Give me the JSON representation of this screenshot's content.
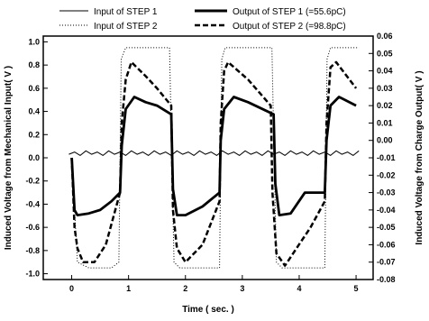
{
  "chart_data": {
    "type": "line",
    "title": "",
    "xlabel": "Time ( sec. )",
    "ylabel_left": "Induced Voltage from Mechanical Input( V )",
    "ylabel_right": "Induced Voltage from Charge Output( V )",
    "xlim": [
      -0.5,
      5.3
    ],
    "ylim_left": [
      -1.05,
      1.05
    ],
    "ylim_right": [
      -0.08,
      0.06
    ],
    "x_ticks": [
      "0",
      "1",
      "2",
      "3",
      "4",
      "5"
    ],
    "y_left_ticks": [
      "-1.0",
      "-0.8",
      "-0.6",
      "-0.4",
      "-0.2",
      "0.0",
      "0.2",
      "0.4",
      "0.6",
      "0.8",
      "1.0"
    ],
    "y_right_ticks": [
      "-0.08",
      "-0.07",
      "-0.06",
      "-0.05",
      "-0.04",
      "-0.03",
      "-0.02",
      "-0.01",
      "0.00",
      "0.01",
      "0.02",
      "0.03",
      "0.04",
      "0.05",
      "0.06"
    ],
    "legend_position": "top",
    "series": [
      {
        "name": "Input of STEP 1",
        "axis": "left",
        "style": "solid-thin",
        "x": [
          -0.05,
          0.05,
          0.15,
          0.25,
          0.35,
          0.45,
          0.55,
          0.65,
          0.75,
          0.85,
          0.95,
          1.05,
          1.15,
          1.25,
          1.35,
          1.45,
          1.55,
          1.65,
          1.75,
          1.85,
          1.95,
          2.05,
          2.15,
          2.25,
          2.35,
          2.45,
          2.55,
          2.65,
          2.75,
          2.85,
          2.95,
          3.05,
          3.15,
          3.25,
          3.35,
          3.45,
          3.55,
          3.65,
          3.75,
          3.85,
          3.95,
          4.05,
          4.15,
          4.25,
          4.35,
          4.45,
          4.55,
          4.65,
          4.75,
          4.85,
          4.95,
          5.05
        ],
        "values": [
          0.03,
          0.05,
          0.02,
          0.06,
          0.03,
          0.05,
          0.02,
          0.06,
          0.03,
          0.05,
          0.02,
          0.06,
          0.03,
          0.05,
          0.02,
          0.06,
          0.03,
          0.05,
          0.02,
          0.06,
          0.03,
          0.05,
          0.02,
          0.06,
          0.03,
          0.05,
          0.02,
          0.06,
          0.03,
          0.05,
          0.02,
          0.06,
          0.03,
          0.05,
          0.02,
          0.06,
          0.03,
          0.05,
          0.02,
          0.06,
          0.03,
          0.05,
          0.02,
          0.06,
          0.03,
          0.05,
          0.02,
          0.06,
          0.03,
          0.05,
          0.02,
          0.06
        ]
      },
      {
        "name": "Input of STEP 2",
        "axis": "left",
        "style": "dotted",
        "x": [
          0.0,
          0.1,
          0.3,
          0.5,
          0.7,
          0.83,
          0.87,
          0.95,
          1.2,
          1.5,
          1.72,
          1.76,
          1.8,
          1.9,
          2.2,
          2.5,
          2.6,
          2.64,
          2.7,
          3.0,
          3.3,
          3.52,
          3.56,
          3.6,
          3.7,
          4.0,
          4.3,
          4.45,
          4.49,
          4.55,
          4.8,
          5.05
        ],
        "values": [
          0.0,
          -0.9,
          -0.95,
          -0.95,
          -0.95,
          -0.9,
          0.85,
          0.95,
          0.95,
          0.95,
          0.95,
          0.0,
          -0.9,
          -0.95,
          -0.95,
          -0.95,
          -0.95,
          0.85,
          0.95,
          0.95,
          0.95,
          0.95,
          0.0,
          -0.9,
          -0.95,
          -0.95,
          -0.95,
          -0.95,
          0.85,
          0.95,
          0.95,
          0.95
        ]
      },
      {
        "name": "Output of STEP 1 (=55.6pC)",
        "axis": "right",
        "style": "solid-thick",
        "x": [
          0.0,
          0.05,
          0.1,
          0.3,
          0.5,
          0.7,
          0.85,
          0.88,
          0.95,
          1.1,
          1.3,
          1.5,
          1.75,
          1.78,
          1.85,
          2.0,
          2.3,
          2.6,
          2.62,
          2.68,
          2.85,
          3.1,
          3.55,
          3.58,
          3.65,
          3.85,
          4.1,
          4.45,
          4.48,
          4.55,
          4.7,
          5.0
        ],
        "values": [
          -0.01,
          -0.04,
          -0.043,
          -0.042,
          -0.04,
          -0.035,
          -0.03,
          -0.003,
          0.018,
          0.025,
          0.022,
          0.02,
          0.015,
          -0.028,
          -0.043,
          -0.043,
          -0.038,
          -0.03,
          0.0,
          0.018,
          0.025,
          0.022,
          0.015,
          -0.025,
          -0.043,
          -0.042,
          -0.03,
          -0.03,
          0.0,
          0.02,
          0.025,
          0.02
        ]
      },
      {
        "name": "Output of STEP 2 (=98.8pC)",
        "axis": "right",
        "style": "dashed",
        "x": [
          0.0,
          0.05,
          0.1,
          0.2,
          0.4,
          0.6,
          0.85,
          0.88,
          0.95,
          1.05,
          1.3,
          1.5,
          1.75,
          1.78,
          1.85,
          2.0,
          2.3,
          2.6,
          2.62,
          2.68,
          2.75,
          3.1,
          3.5,
          3.53,
          3.6,
          3.75,
          4.2,
          4.45,
          4.48,
          4.55,
          4.65,
          5.0
        ],
        "values": [
          -0.01,
          -0.05,
          -0.062,
          -0.07,
          -0.07,
          -0.06,
          -0.03,
          0.01,
          0.035,
          0.045,
          0.037,
          0.03,
          0.02,
          -0.04,
          -0.062,
          -0.07,
          -0.06,
          -0.035,
          0.01,
          0.04,
          0.045,
          0.035,
          0.02,
          -0.03,
          -0.065,
          -0.072,
          -0.05,
          -0.035,
          0.01,
          0.042,
          0.045,
          0.03
        ]
      }
    ]
  }
}
